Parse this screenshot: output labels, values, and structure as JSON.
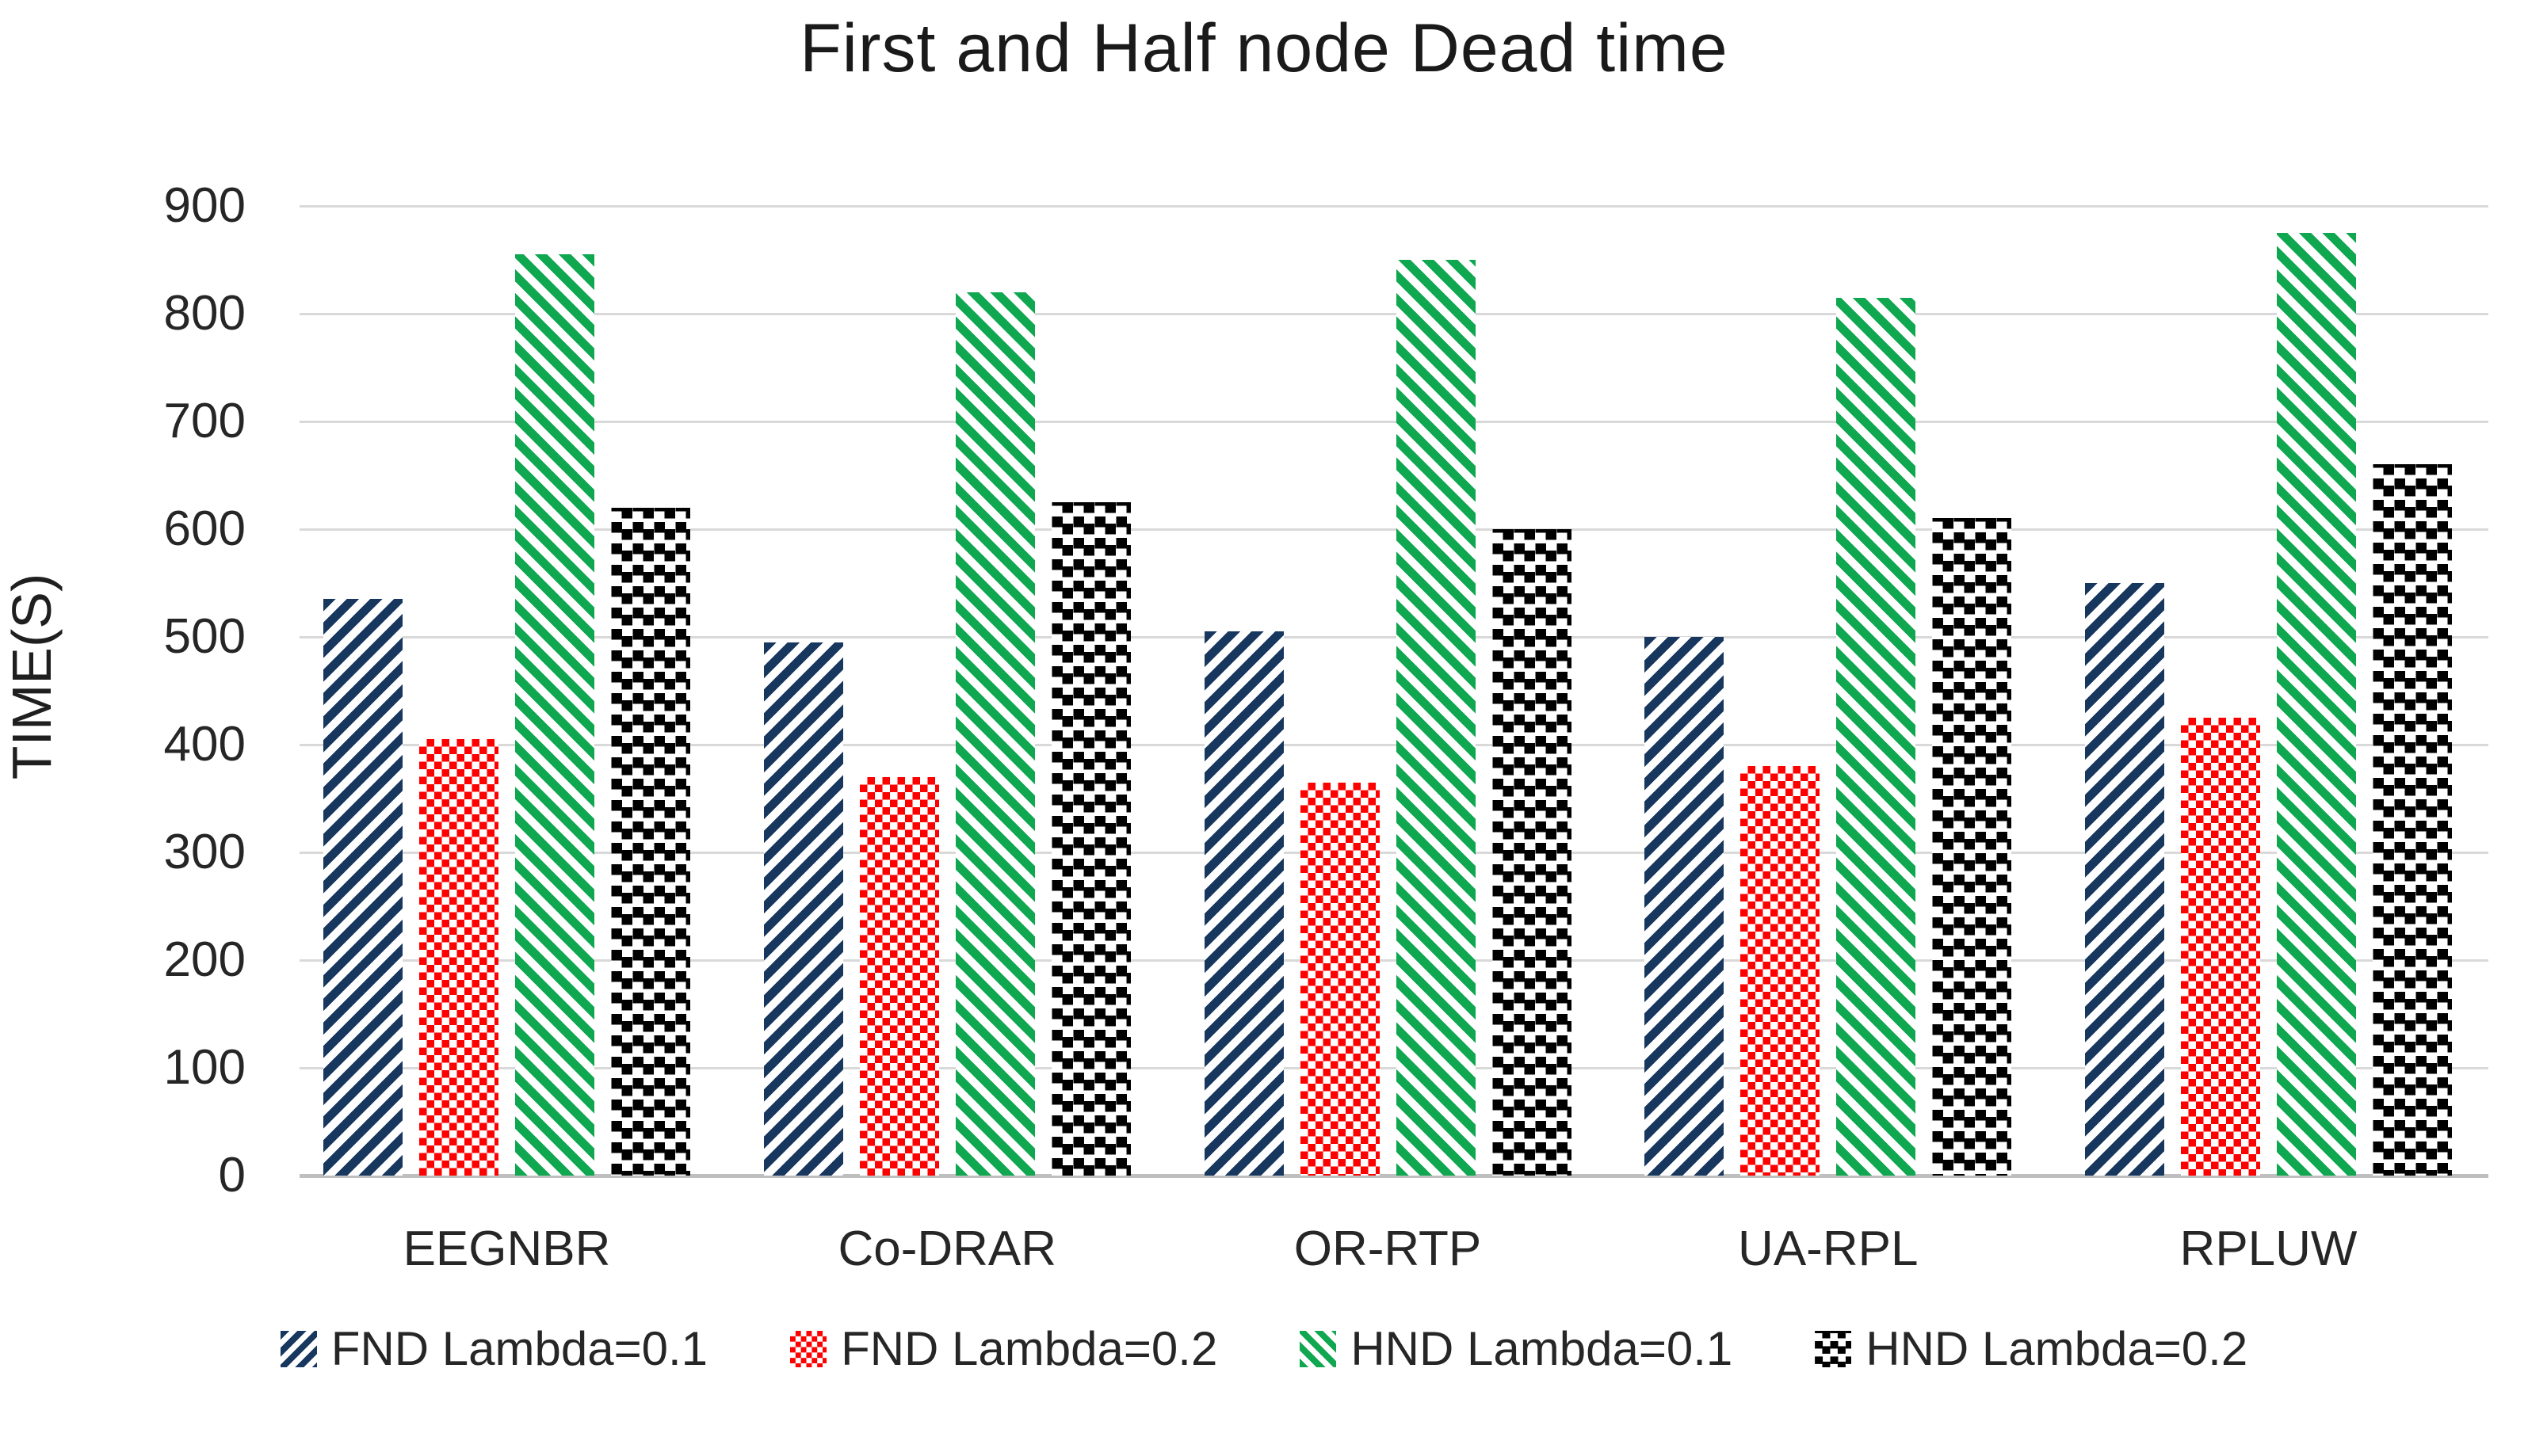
{
  "chart_data": {
    "type": "bar",
    "title": "First and Half node Dead time",
    "xlabel": "",
    "ylabel": "TIME(S)",
    "ylim": [
      0,
      900
    ],
    "yticks": [
      0,
      100,
      200,
      300,
      400,
      500,
      600,
      700,
      800,
      900
    ],
    "grid": true,
    "legend_position": "bottom",
    "categories": [
      "EEGNBR",
      "Co-DRAR",
      "OR-RTP",
      "UA-RPL",
      "RPLUW"
    ],
    "series": [
      {
        "name": "FND Lambda=0.1",
        "color": "#17375e",
        "pattern": "diagonal-up-stripes",
        "values": [
          535,
          495,
          505,
          500,
          550
        ]
      },
      {
        "name": "FND Lambda=0.2",
        "color": "#fe0000",
        "pattern": "checkerboard",
        "values": [
          405,
          370,
          365,
          380,
          425
        ]
      },
      {
        "name": "HND Lambda=0.1",
        "color": "#0fa750",
        "pattern": "diagonal-down-stripes",
        "values": [
          855,
          820,
          850,
          815,
          875
        ]
      },
      {
        "name": "HND Lambda=0.2",
        "color": "#000000",
        "pattern": "staggered-squares",
        "values": [
          620,
          625,
          600,
          610,
          660
        ]
      }
    ],
    "gridline_color": "#d9d9d9",
    "zero_line_color": "#bfbfbf",
    "background_color": "#ffffff"
  }
}
